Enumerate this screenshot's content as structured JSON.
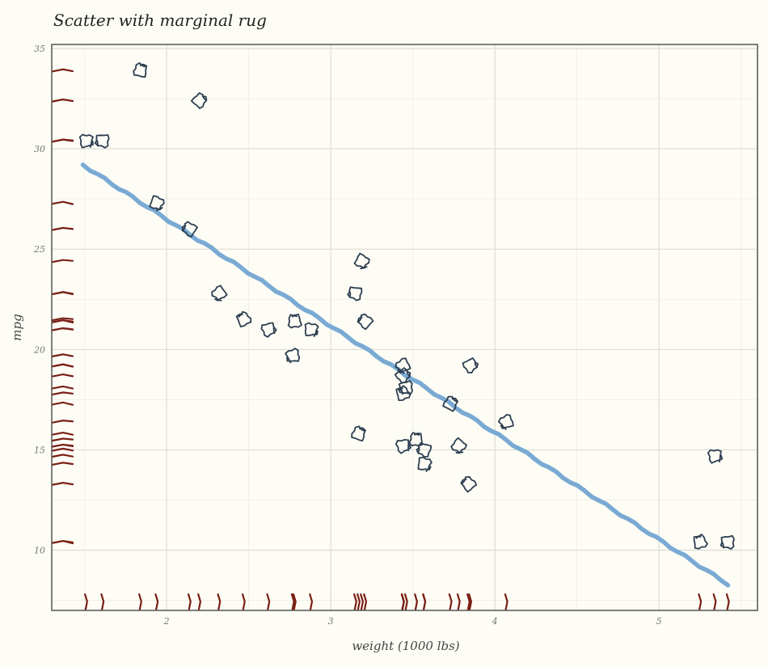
{
  "chart_data": {
    "type": "scatter",
    "title": "Scatter with marginal rug",
    "xlabel": "weight (1000 lbs)",
    "ylabel": "mpg",
    "xlim": [
      1.3,
      5.6
    ],
    "ylim": [
      7.0,
      35.2
    ],
    "x_ticks": [
      2,
      3,
      4,
      5
    ],
    "y_ticks": [
      10,
      15,
      20,
      25,
      30,
      35
    ],
    "grid": true,
    "points": [
      {
        "x": 1.51,
        "y": 30.4
      },
      {
        "x": 1.61,
        "y": 30.4
      },
      {
        "x": 1.84,
        "y": 33.9
      },
      {
        "x": 1.94,
        "y": 27.3
      },
      {
        "x": 2.14,
        "y": 26.0
      },
      {
        "x": 2.2,
        "y": 32.4
      },
      {
        "x": 2.32,
        "y": 22.8
      },
      {
        "x": 2.47,
        "y": 21.5
      },
      {
        "x": 2.62,
        "y": 21.0
      },
      {
        "x": 2.77,
        "y": 19.7
      },
      {
        "x": 2.78,
        "y": 21.4
      },
      {
        "x": 2.88,
        "y": 21.0
      },
      {
        "x": 3.15,
        "y": 22.8
      },
      {
        "x": 3.17,
        "y": 15.8
      },
      {
        "x": 3.19,
        "y": 24.4
      },
      {
        "x": 3.21,
        "y": 21.4
      },
      {
        "x": 3.44,
        "y": 18.7
      },
      {
        "x": 3.44,
        "y": 19.2
      },
      {
        "x": 3.44,
        "y": 17.8
      },
      {
        "x": 3.44,
        "y": 15.2
      },
      {
        "x": 3.46,
        "y": 18.1
      },
      {
        "x": 3.52,
        "y": 15.5
      },
      {
        "x": 3.57,
        "y": 14.3
      },
      {
        "x": 3.57,
        "y": 15.0
      },
      {
        "x": 3.73,
        "y": 17.3
      },
      {
        "x": 3.78,
        "y": 15.2
      },
      {
        "x": 3.84,
        "y": 13.3
      },
      {
        "x": 3.85,
        "y": 19.2
      },
      {
        "x": 4.07,
        "y": 16.4
      },
      {
        "x": 5.25,
        "y": 10.4
      },
      {
        "x": 5.34,
        "y": 14.7
      },
      {
        "x": 5.42,
        "y": 10.4
      }
    ],
    "trend_line": {
      "x": [
        1.49,
        5.42
      ],
      "y": [
        29.2,
        8.3
      ]
    },
    "colors": {
      "background": "#fdfdf5",
      "points": "#2d3e50",
      "trend": "#7aaad4",
      "rug": "#7a1f15",
      "grid": "#dcdcd5",
      "frame": "#555555"
    }
  }
}
